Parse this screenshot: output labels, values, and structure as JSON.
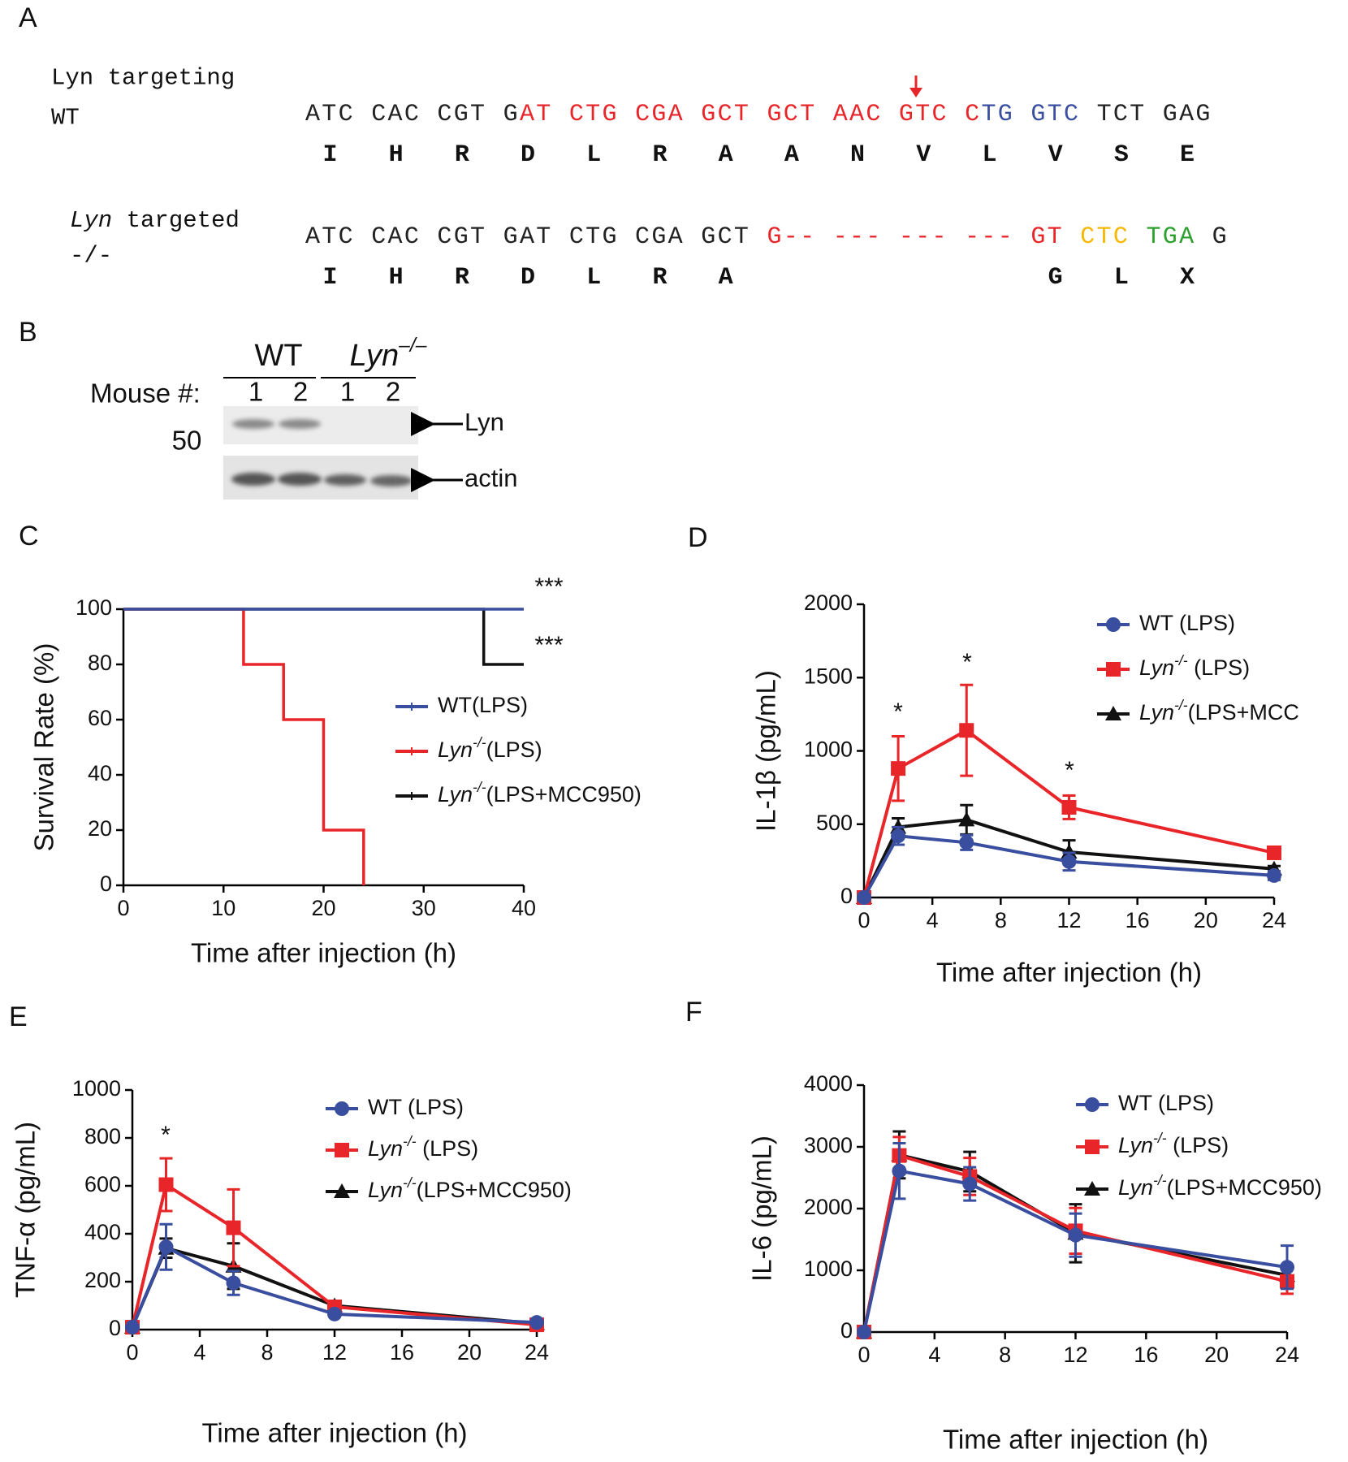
{
  "panel_a": {
    "label": "A",
    "wt": {
      "title": "Lyn targeting",
      "genotype": "WT",
      "sequence": [
        {
          "text": "ATC CAC CGT G",
          "color": "#222222"
        },
        {
          "text": "AT CTG CGA GCT GCT AAC GTC C",
          "color": "#e8262a"
        },
        {
          "text": "TG GTC",
          "color": "#3a4ea0"
        },
        {
          "text": " TCT GAG",
          "color": "#222222"
        }
      ],
      "amino_acids": [
        "I",
        "H",
        "R",
        "D",
        "L",
        "R",
        "A",
        "A",
        "N",
        "V",
        "L",
        "V",
        "S",
        "E"
      ],
      "amino_acid_color": "#111111"
    },
    "knockout": {
      "title": "Lyn targeted",
      "genotype": "-/-",
      "sequence": [
        {
          "text": "ATC CAC CGT GAT CTG CGA GCT ",
          "color": "#222222"
        },
        {
          "text": "G-- --- --- --- GT",
          "color": "#e8262a"
        },
        {
          "text": " CTC",
          "color": "#f5b700"
        },
        {
          "text": " TGA",
          "color": "#2ca02c"
        },
        {
          "text": " G",
          "color": "#222222"
        }
      ],
      "amino_acids": [
        "I",
        "H",
        "R",
        "D",
        "L",
        "R",
        "A",
        null,
        null,
        null,
        null,
        "G",
        "L",
        "X"
      ],
      "amino_acid_colors": [
        "#111111",
        "#111111",
        "#111111",
        "#111111",
        "#111111",
        "#111111",
        "#111111",
        null,
        null,
        null,
        null,
        "#e8262a",
        "#f5b700",
        "#2ca02c"
      ]
    }
  },
  "panel_b": {
    "label": "B",
    "groups": [
      "WT",
      "Lyn–/–"
    ],
    "lanes_label": "Mouse #:",
    "lanes": [
      "1",
      "2",
      "1",
      "2"
    ],
    "marker": "50",
    "bands": [
      "Lyn",
      "actin"
    ]
  },
  "chart_data": [
    {
      "type": "line",
      "panel": "C",
      "step": true,
      "y_label": "Survival Rate (%)",
      "x_label": "Time after injection (h)",
      "xlim": [
        0,
        40
      ],
      "xticks": [
        0,
        10,
        20,
        30,
        40
      ],
      "ylim": [
        0,
        100
      ],
      "yticks": [
        0,
        20,
        40,
        60,
        80,
        100
      ],
      "series": [
        {
          "name": "WT(LPS)",
          "color": "#3a4ea0",
          "x": [
            0,
            40
          ],
          "values": [
            100,
            100
          ]
        },
        {
          "name": "Lyn-/-(LPS)",
          "color": "#e8262a",
          "x": [
            0,
            12,
            16,
            20,
            24
          ],
          "values": [
            100,
            80,
            60,
            20,
            0
          ]
        },
        {
          "name": "Lyn-/-(LPS+MCC950)",
          "color": "#111111",
          "x": [
            0,
            36,
            40
          ],
          "values": [
            100,
            80,
            80
          ]
        }
      ],
      "annotations": [
        "***",
        "***"
      ]
    },
    {
      "type": "line",
      "panel": "D",
      "y_label": "IL-1β (pg/mL)",
      "x_label": "Time after injection (h)",
      "x": [
        0,
        2,
        6,
        12,
        24
      ],
      "xlim": [
        0,
        24
      ],
      "xticks": [
        0,
        4,
        8,
        12,
        16,
        20,
        24
      ],
      "ylim": [
        0,
        2000
      ],
      "yticks": [
        0,
        500,
        1000,
        1500,
        2000
      ],
      "series": [
        {
          "name": "WT (LPS)",
          "color": "#3a4ea0",
          "marker": "circle",
          "values": [
            0,
            420,
            375,
            245,
            150
          ],
          "errors": [
            0,
            60,
            50,
            60,
            30
          ]
        },
        {
          "name": "Lyn-/- (LPS)",
          "color": "#e8262a",
          "marker": "square",
          "values": [
            0,
            880,
            1140,
            615,
            305
          ],
          "errors": [
            0,
            220,
            310,
            80,
            40
          ]
        },
        {
          "name": "Lyn-/-(LPS+MCC",
          "color": "#111111",
          "marker": "triangle",
          "values": [
            0,
            480,
            530,
            310,
            195
          ],
          "errors": [
            0,
            60,
            100,
            80,
            20
          ]
        }
      ],
      "annotations": [
        "*",
        "*",
        "*"
      ]
    },
    {
      "type": "line",
      "panel": "E",
      "y_label": "TNF-α (pg/mL)",
      "x_label": "Time after injection (h)",
      "x": [
        0,
        2,
        6,
        12,
        24
      ],
      "xlim": [
        0,
        24
      ],
      "xticks": [
        0,
        4,
        8,
        12,
        16,
        20,
        24
      ],
      "ylim": [
        0,
        1000
      ],
      "yticks": [
        0,
        200,
        400,
        600,
        800,
        1000
      ],
      "series": [
        {
          "name": "WT (LPS)",
          "color": "#3a4ea0",
          "marker": "circle",
          "values": [
            10,
            345,
            195,
            65,
            30
          ],
          "errors": [
            0,
            95,
            50,
            10,
            5
          ]
        },
        {
          "name": "Lyn-/- (LPS)",
          "color": "#e8262a",
          "marker": "square",
          "values": [
            10,
            605,
            425,
            95,
            20
          ],
          "errors": [
            0,
            110,
            160,
            10,
            5
          ]
        },
        {
          "name": "Lyn-/-(LPS+MCC950)",
          "color": "#111111",
          "marker": "triangle",
          "values": [
            10,
            340,
            265,
            100,
            25
          ],
          "errors": [
            0,
            40,
            95,
            10,
            5
          ]
        }
      ],
      "annotations": [
        "*"
      ]
    },
    {
      "type": "line",
      "panel": "F",
      "y_label": "IL-6 (pg/mL)",
      "x_label": "Time after injection (h)",
      "x": [
        0,
        2,
        6,
        12,
        24
      ],
      "xlim": [
        0,
        24
      ],
      "xticks": [
        0,
        4,
        8,
        12,
        16,
        20,
        24
      ],
      "ylim": [
        0,
        4000
      ],
      "yticks": [
        0,
        1000,
        2000,
        3000,
        4000
      ],
      "series": [
        {
          "name": "WT (LPS)",
          "color": "#3a4ea0",
          "marker": "circle",
          "values": [
            0,
            2610,
            2400,
            1570,
            1050
          ],
          "errors": [
            0,
            450,
            270,
            350,
            350
          ]
        },
        {
          "name": "Lyn-/- (LPS)",
          "color": "#e8262a",
          "marker": "square",
          "values": [
            0,
            2860,
            2520,
            1640,
            820
          ],
          "errors": [
            0,
            300,
            300,
            370,
            200
          ]
        },
        {
          "name": "Lyn-/-(LPS+MCC950)",
          "color": "#111111",
          "marker": "triangle",
          "values": [
            0,
            2870,
            2600,
            1600,
            920
          ],
          "errors": [
            0,
            380,
            320,
            470,
            150
          ]
        }
      ]
    }
  ]
}
